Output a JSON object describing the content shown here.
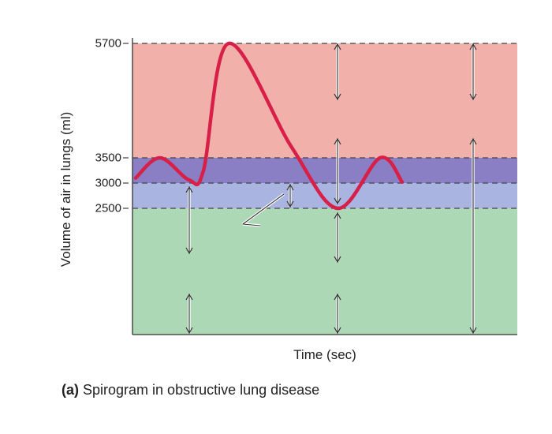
{
  "chart_data": {
    "type": "line",
    "ylabel": "Volume of air in lungs (ml)",
    "xlabel": "Time (sec)",
    "y_ticks": [
      "5700",
      "3500",
      "3000",
      "2500"
    ],
    "ylim": [
      0,
      5700
    ],
    "tick_values": [
      5700,
      3500,
      3000,
      2500
    ],
    "zones": [
      {
        "from": 3500,
        "to": 5700,
        "color": "#f2b0aa"
      },
      {
        "from": 3000,
        "to": 3500,
        "color": "#8a7fc4"
      },
      {
        "from": 2500,
        "to": 3000,
        "color": "#a9b4e0"
      },
      {
        "from": 0,
        "to": 2500,
        "color": "#acd8b5"
      }
    ],
    "curve_color": "#d81f47",
    "axis_color": "#333333"
  },
  "caption": {
    "tag": "(a)",
    "text": "Spirogram in obstructive lung disease"
  }
}
